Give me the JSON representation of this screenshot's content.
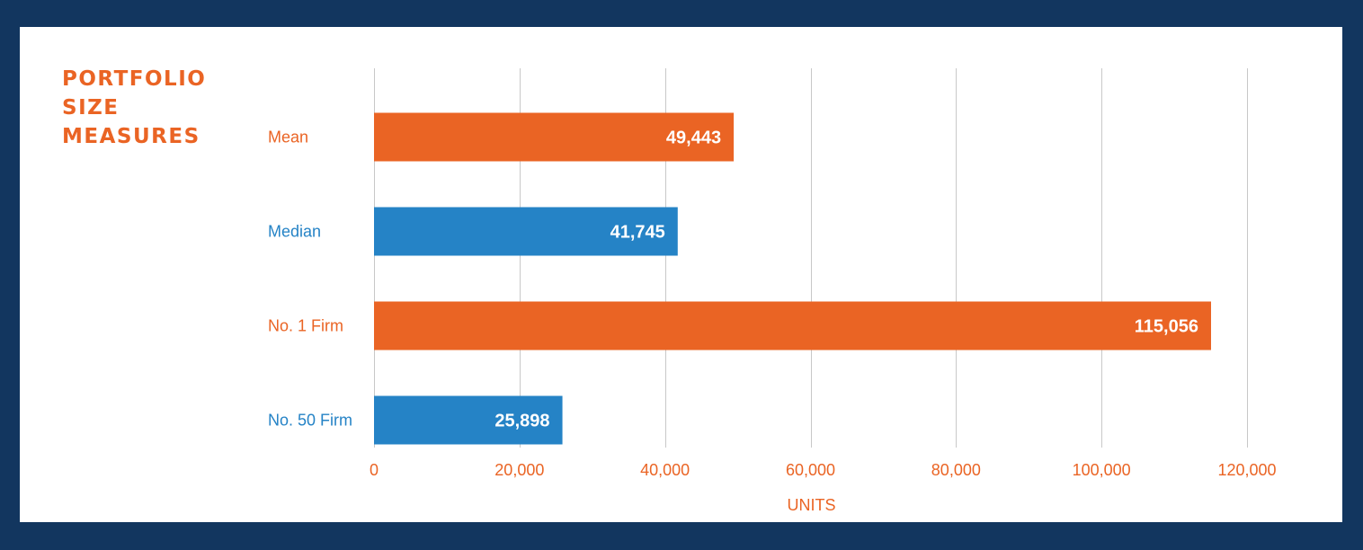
{
  "chart_data": {
    "type": "bar",
    "orientation": "horizontal",
    "title_lines": [
      "PORTFOLIO",
      "SIZE",
      "MEASURES"
    ],
    "xlabel": "UNITS",
    "ylabel": "",
    "xlim": [
      0,
      120000
    ],
    "x_ticks": [
      0,
      20000,
      40000,
      60000,
      80000,
      100000,
      120000
    ],
    "x_tick_labels": [
      "0",
      "20,000",
      "40,000",
      "60,000",
      "80,000",
      "100,000",
      "120,000"
    ],
    "grid": "vertical",
    "categories": [
      "Mean",
      "Median",
      "No. 1 Firm",
      "No. 50 Firm"
    ],
    "values": [
      49443,
      41745,
      115056,
      25898
    ],
    "value_labels": [
      "49,443",
      "41,745",
      "115,056",
      "25,898"
    ],
    "colors": [
      "#ea6424",
      "#2583c6",
      "#ea6424",
      "#2583c6"
    ]
  },
  "theme": {
    "background": "#12365f",
    "panel": "#ffffff",
    "accent_orange": "#ea6424",
    "accent_blue": "#2583c6",
    "gridline": "#c8c8c8"
  }
}
